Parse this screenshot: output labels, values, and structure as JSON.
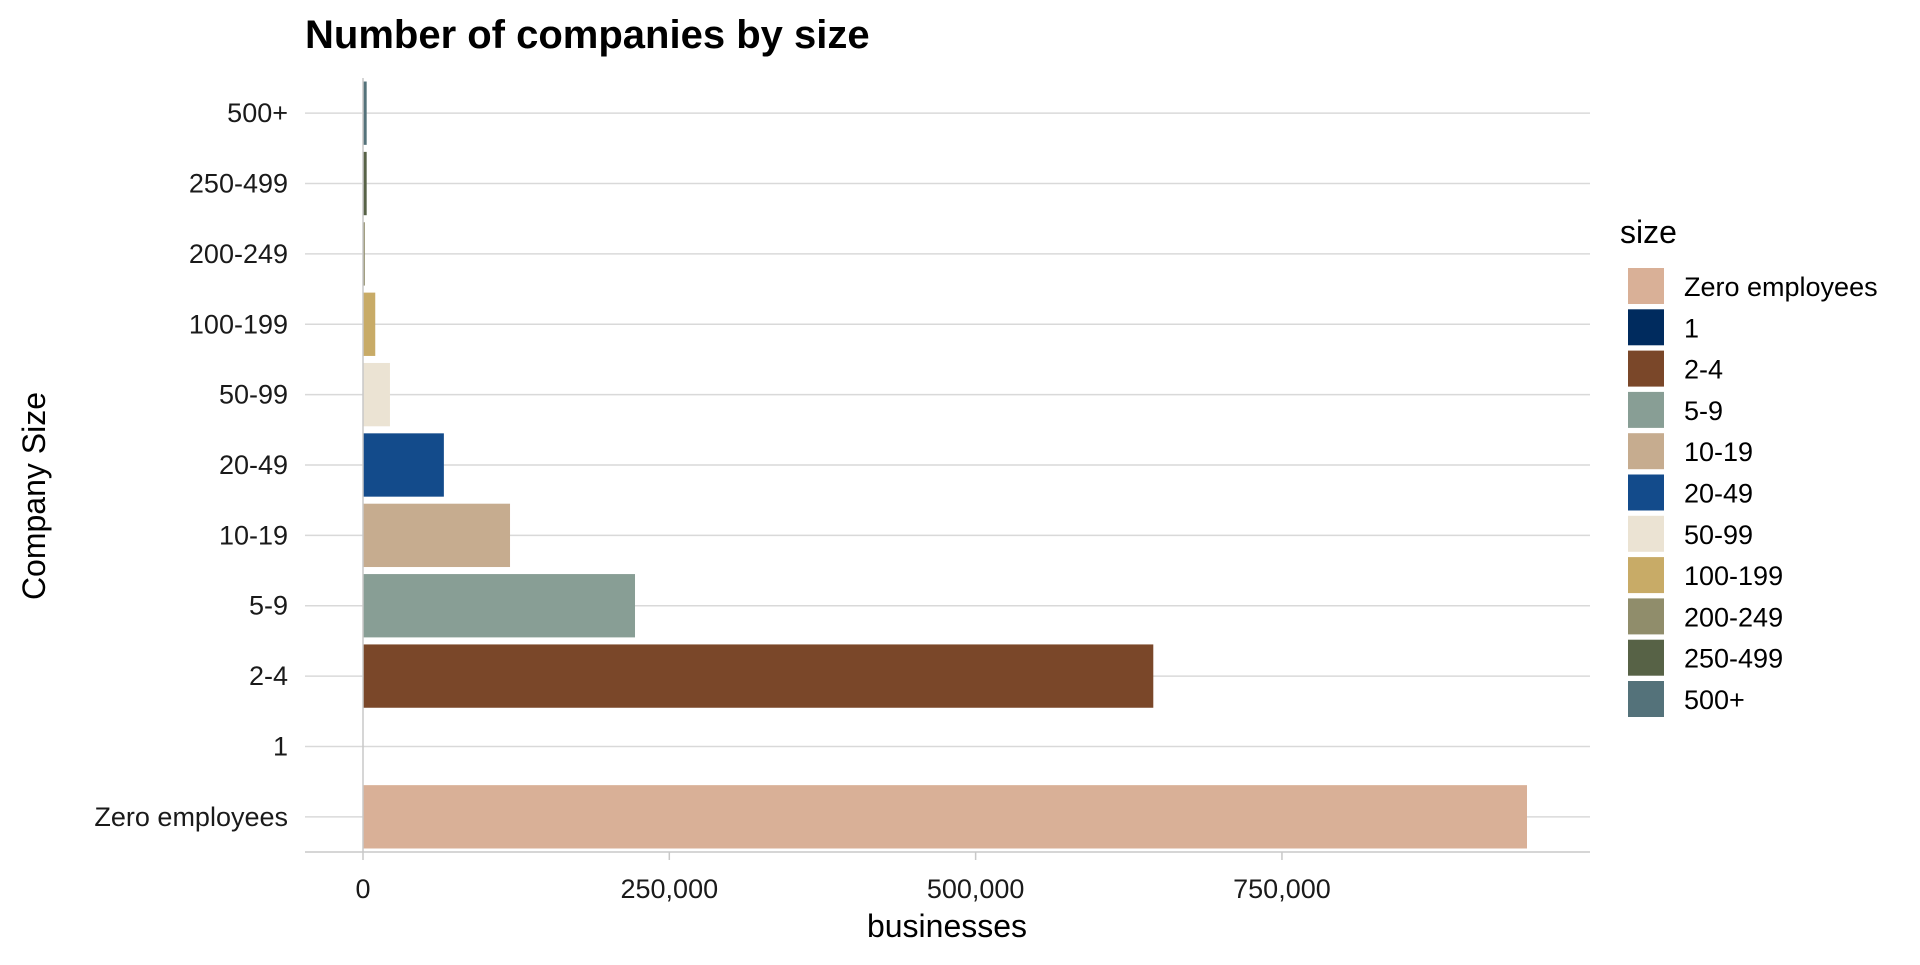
{
  "chart_data": {
    "type": "bar",
    "orientation": "horizontal",
    "title": "Number of companies by size",
    "xlabel": "businesses",
    "ylabel": "Company Size",
    "xlim": [
      -15000,
      1000000
    ],
    "xticks": [
      0,
      250000,
      500000,
      750000
    ],
    "xtick_labels": [
      "0",
      "250,000",
      "500,000",
      "750,000"
    ],
    "grid": "major horizontal lines",
    "categories": [
      "Zero employees",
      "1",
      "2-4",
      "5-9",
      "10-19",
      "20-49",
      "50-99",
      "100-199",
      "200-249",
      "250-499",
      "500+"
    ],
    "values": [
      950000,
      0,
      645000,
      222000,
      120000,
      66000,
      22000,
      10000,
      1500,
      3000,
      3000
    ],
    "colors": [
      "#d9b097",
      "#002b5e",
      "#7a4729",
      "#889e95",
      "#c6ac8f",
      "#134b8b",
      "#ebe3d3",
      "#c8ab67",
      "#908d6b",
      "#576246",
      "#54727a"
    ],
    "legend": {
      "title": "size",
      "position": "right",
      "entries": [
        "Zero employees",
        "1",
        "2-4",
        "5-9",
        "10-19",
        "20-49",
        "50-99",
        "100-199",
        "200-249",
        "250-499",
        "500+"
      ]
    }
  }
}
